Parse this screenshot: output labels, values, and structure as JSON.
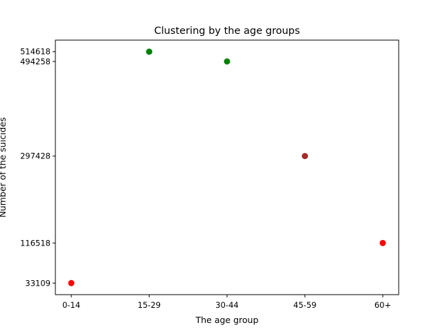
{
  "chart_data": {
    "type": "scatter",
    "title": "Clustering by the age groups",
    "xlabel": "The age group",
    "ylabel": "Number of the suicides",
    "categories": [
      "0-14",
      "15-29",
      "30-44",
      "45-59",
      "60+"
    ],
    "values": [
      33109,
      514618,
      494258,
      297428,
      116518
    ],
    "point_colors": [
      "#ff0000",
      "#008000",
      "#008000",
      "#a52a2a",
      "#ff0000"
    ],
    "yticks": [
      33109,
      116518,
      297428,
      494258,
      514618
    ],
    "ytick_labels": [
      "33109",
      "116518",
      "297428",
      "494258",
      "514618"
    ],
    "ylim": [
      9033,
      538694
    ],
    "grid": false,
    "legend": "none"
  }
}
